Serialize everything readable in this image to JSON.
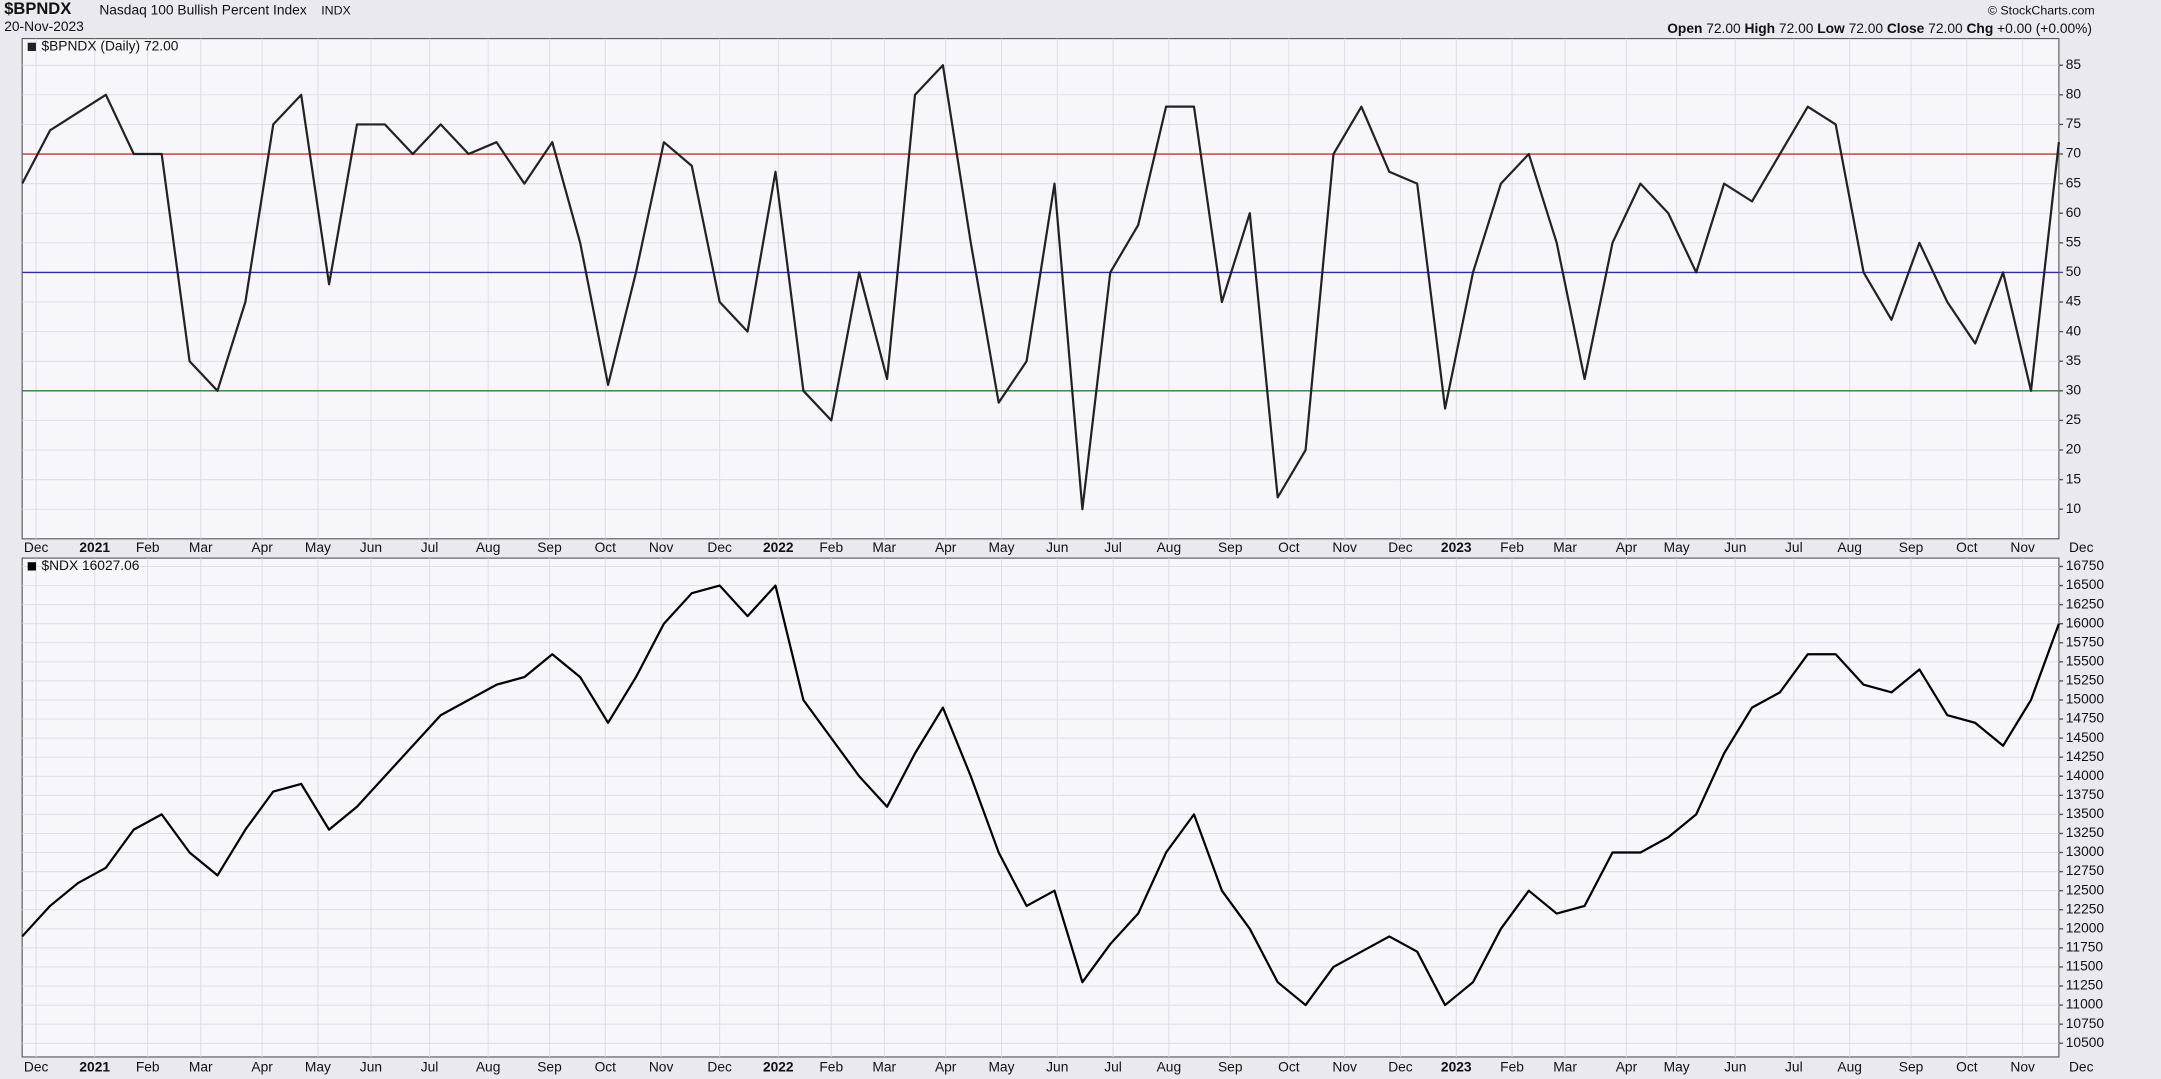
{
  "header": {
    "symbol": "$BPNDX",
    "name": "Nasdaq 100 Bullish Percent Index",
    "exchange": "INDX",
    "date": "20-Nov-2023",
    "credit": "© StockCharts.com",
    "quote": [
      [
        "Open",
        "72.00"
      ],
      [
        "High",
        "72.00"
      ],
      [
        "Low",
        "72.00"
      ],
      [
        "Close",
        "72.00"
      ],
      [
        "Chg",
        "+0.00 (+0.00%)"
      ]
    ]
  },
  "chart_data": [
    {
      "type": "line",
      "series": [
        {
          "name": "$BPNDX (Daily) 72.00",
          "color": "#222222",
          "values": [
            65,
            74,
            77,
            80,
            70,
            70,
            35,
            30,
            45,
            75,
            80,
            48,
            75,
            75,
            70,
            75,
            70,
            72,
            65,
            72,
            55,
            31,
            50,
            72,
            68,
            45,
            40,
            67,
            30,
            25,
            50,
            32,
            80,
            85,
            55,
            28,
            35,
            65,
            10,
            50,
            58,
            78,
            78,
            45,
            60,
            12,
            20,
            70,
            78,
            67,
            65,
            27,
            50,
            65,
            70,
            55,
            32,
            55,
            65,
            60,
            50,
            65,
            62,
            70,
            78,
            75,
            50,
            42,
            55,
            45,
            38,
            50,
            30,
            72
          ]
        }
      ],
      "reference_lines": [
        {
          "value": 70,
          "color": "#c0392b"
        },
        {
          "value": 50,
          "color": "#2c2ca8"
        },
        {
          "value": 30,
          "color": "#2e7d32"
        }
      ],
      "xlim": [
        0,
        73
      ],
      "xticks": [
        {
          "value": 0.5,
          "label": "Dec"
        },
        {
          "value": 2.6,
          "label": "2021"
        },
        {
          "value": 4.5,
          "label": "Feb"
        },
        {
          "value": 6.4,
          "label": "Mar"
        },
        {
          "value": 8.6,
          "label": "Apr"
        },
        {
          "value": 10.6,
          "label": "May"
        },
        {
          "value": 12.5,
          "label": "Jun"
        },
        {
          "value": 14.6,
          "label": "Jul"
        },
        {
          "value": 16.7,
          "label": "Aug"
        },
        {
          "value": 18.9,
          "label": "Sep"
        },
        {
          "value": 20.9,
          "label": "Oct"
        },
        {
          "value": 22.9,
          "label": "Nov"
        },
        {
          "value": 25.0,
          "label": "Dec"
        },
        {
          "value": 27.1,
          "label": "2022"
        },
        {
          "value": 29.0,
          "label": "Feb"
        },
        {
          "value": 30.9,
          "label": "Mar"
        },
        {
          "value": 33.1,
          "label": "Apr"
        },
        {
          "value": 35.1,
          "label": "May"
        },
        {
          "value": 37.1,
          "label": "Jun"
        },
        {
          "value": 39.1,
          "label": "Jul"
        },
        {
          "value": 41.1,
          "label": "Aug"
        },
        {
          "value": 43.3,
          "label": "Sep"
        },
        {
          "value": 45.4,
          "label": "Oct"
        },
        {
          "value": 47.4,
          "label": "Nov"
        },
        {
          "value": 49.4,
          "label": "Dec"
        },
        {
          "value": 51.4,
          "label": "2023"
        },
        {
          "value": 53.4,
          "label": "Feb"
        },
        {
          "value": 55.3,
          "label": "Mar"
        },
        {
          "value": 57.5,
          "label": "Apr"
        },
        {
          "value": 59.3,
          "label": "May"
        },
        {
          "value": 61.4,
          "label": "Jun"
        },
        {
          "value": 63.5,
          "label": "Jul"
        },
        {
          "value": 65.5,
          "label": "Aug"
        },
        {
          "value": 67.7,
          "label": "Sep"
        },
        {
          "value": 69.7,
          "label": "Oct"
        },
        {
          "value": 71.7,
          "label": "Nov"
        },
        {
          "value": 73.8,
          "label": "Dec"
        }
      ],
      "ylim": [
        5,
        89.5
      ],
      "yticks": [
        10,
        15,
        20,
        25,
        30,
        35,
        40,
        45,
        50,
        55,
        60,
        65,
        70,
        75,
        80,
        85
      ],
      "grid": true
    },
    {
      "type": "line",
      "series": [
        {
          "name": "$NDX 16027.06",
          "color": "#000000",
          "values": [
            11900,
            12300,
            12600,
            12800,
            13300,
            13500,
            13000,
            12700,
            13300,
            13800,
            13900,
            13300,
            13600,
            14000,
            14400,
            14800,
            15000,
            15200,
            15300,
            15600,
            15300,
            14700,
            15300,
            16000,
            16400,
            16500,
            16100,
            16500,
            15000,
            14500,
            14000,
            13600,
            14300,
            14900,
            14000,
            13000,
            12300,
            12500,
            11300,
            11800,
            12200,
            13000,
            13500,
            12500,
            12000,
            11300,
            11000,
            11500,
            11700,
            11900,
            11700,
            11000,
            11300,
            12000,
            12500,
            12200,
            12300,
            13000,
            13000,
            13200,
            13500,
            14300,
            14900,
            15100,
            15600,
            15600,
            15200,
            15100,
            15400,
            14800,
            14700,
            14400,
            15000,
            16000
          ]
        }
      ],
      "xlim": [
        0,
        73
      ],
      "xticks": [
        {
          "value": 0.5,
          "label": "Dec"
        },
        {
          "value": 2.6,
          "label": "2021"
        },
        {
          "value": 4.5,
          "label": "Feb"
        },
        {
          "value": 6.4,
          "label": "Mar"
        },
        {
          "value": 8.6,
          "label": "Apr"
        },
        {
          "value": 10.6,
          "label": "May"
        },
        {
          "value": 12.5,
          "label": "Jun"
        },
        {
          "value": 14.6,
          "label": "Jul"
        },
        {
          "value": 16.7,
          "label": "Aug"
        },
        {
          "value": 18.9,
          "label": "Sep"
        },
        {
          "value": 20.9,
          "label": "Oct"
        },
        {
          "value": 22.9,
          "label": "Nov"
        },
        {
          "value": 25.0,
          "label": "Dec"
        },
        {
          "value": 27.1,
          "label": "2022"
        },
        {
          "value": 29.0,
          "label": "Feb"
        },
        {
          "value": 30.9,
          "label": "Mar"
        },
        {
          "value": 33.1,
          "label": "Apr"
        },
        {
          "value": 35.1,
          "label": "May"
        },
        {
          "value": 37.1,
          "label": "Jun"
        },
        {
          "value": 39.1,
          "label": "Jul"
        },
        {
          "value": 41.1,
          "label": "Aug"
        },
        {
          "value": 43.3,
          "label": "Sep"
        },
        {
          "value": 45.4,
          "label": "Oct"
        },
        {
          "value": 47.4,
          "label": "Nov"
        },
        {
          "value": 49.4,
          "label": "Dec"
        },
        {
          "value": 51.4,
          "label": "2023"
        },
        {
          "value": 53.4,
          "label": "Feb"
        },
        {
          "value": 55.3,
          "label": "Mar"
        },
        {
          "value": 57.5,
          "label": "Apr"
        },
        {
          "value": 59.3,
          "label": "May"
        },
        {
          "value": 61.4,
          "label": "Jun"
        },
        {
          "value": 63.5,
          "label": "Jul"
        },
        {
          "value": 65.5,
          "label": "Aug"
        },
        {
          "value": 67.7,
          "label": "Sep"
        },
        {
          "value": 69.7,
          "label": "Oct"
        },
        {
          "value": 71.7,
          "label": "Nov"
        },
        {
          "value": 73.8,
          "label": "Dec"
        }
      ],
      "ylim": [
        10320,
        16860
      ],
      "yticks": [
        10500,
        10750,
        11000,
        11250,
        11500,
        11750,
        12000,
        12250,
        12500,
        12750,
        13000,
        13250,
        13500,
        13750,
        14000,
        14250,
        14500,
        14750,
        15000,
        15250,
        15500,
        15750,
        16000,
        16250,
        16500,
        16750
      ],
      "grid": true
    }
  ]
}
